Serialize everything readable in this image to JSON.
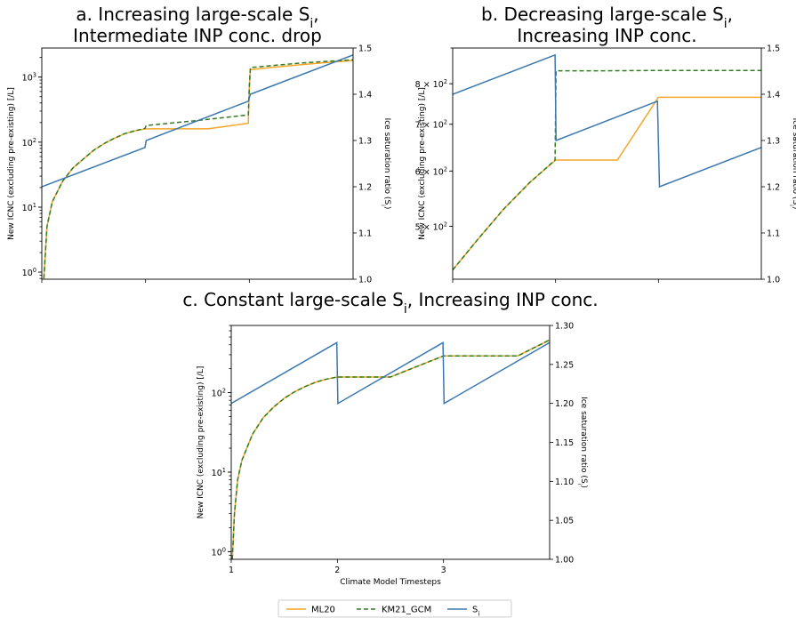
{
  "figure": {
    "legend": [
      {
        "name": "ML20",
        "color": "#f5a52a",
        "dash": false
      },
      {
        "name": "KM21_GCM",
        "color": "#2e7d1f",
        "dash": true
      },
      {
        "name": "S",
        "sub": "i",
        "color": "#3a78b1",
        "dash": false
      }
    ]
  },
  "chart_data": [
    {
      "id": "a",
      "type": "line",
      "title_lines": [
        {
          "text": "a. Increasing large-scale S",
          "sub": "i",
          "tail": ","
        },
        {
          "text": "Intermediate INP conc. drop",
          "sub": "",
          "tail": ""
        }
      ],
      "ylabel_left": "New ICNC (excluding pre-existing) [/L]",
      "ylabel_right": "Ice saturation ratio (S",
      "ylabel_right_sub": "i",
      "ylabel_right_tail": ")",
      "yscale_left": "log",
      "ylim_left": [
        0.78,
        2800
      ],
      "yticks_left": [
        {
          "v": 1,
          "m": "10",
          "e": "0"
        },
        {
          "v": 10,
          "m": "10",
          "e": "1"
        },
        {
          "v": 100,
          "m": "10",
          "e": "2"
        },
        {
          "v": 1000,
          "m": "10",
          "e": "3"
        }
      ],
      "ylim_right": [
        1.0,
        1.5
      ],
      "yticks_right": [
        "1.0",
        "1.1",
        "1.2",
        "1.3",
        "1.4",
        "1.5"
      ],
      "xlim": [
        1,
        4
      ],
      "xticks": [
        1,
        2,
        3
      ],
      "xticklabels": [],
      "series": [
        {
          "name": "ML20",
          "color": "#f5a52a",
          "dash": false,
          "axis": "left",
          "x": [
            1.02,
            1.05,
            1.1,
            1.2,
            1.3,
            1.4,
            1.5,
            1.6,
            1.7,
            1.8,
            1.9,
            2.0,
            2.6,
            2.99,
            3.0,
            3.01,
            3.2,
            3.5,
            3.8,
            4.0
          ],
          "y": [
            0.8,
            5,
            12,
            25,
            40,
            55,
            75,
            95,
            115,
            135,
            150,
            160,
            160,
            195,
            700,
            1300,
            1400,
            1550,
            1700,
            1800
          ]
        },
        {
          "name": "KM21_GCM",
          "color": "#2e7d1f",
          "dash": true,
          "axis": "left",
          "x": [
            1.02,
            1.05,
            1.1,
            1.2,
            1.3,
            1.4,
            1.5,
            1.6,
            1.7,
            1.8,
            1.9,
            1.995,
            2.005,
            2.5,
            2.99,
            3.0,
            3.01,
            3.5,
            4.0
          ],
          "y": [
            0.8,
            5,
            12,
            25,
            40,
            55,
            75,
            95,
            115,
            135,
            150,
            163,
            180,
            215,
            262,
            700,
            1400,
            1650,
            1850
          ]
        },
        {
          "name": "S",
          "color": "#3a78b1",
          "dash": false,
          "axis": "right",
          "x": [
            1,
            1.995,
            2.005,
            2.99,
            3.01,
            4.0
          ],
          "y": [
            1.2,
            1.285,
            1.3,
            1.385,
            1.4,
            1.485
          ]
        }
      ]
    },
    {
      "id": "b",
      "type": "line",
      "title_lines": [
        {
          "text": "b. Decreasing large-scale S",
          "sub": "i",
          "tail": ","
        },
        {
          "text": "Increasing INP conc.",
          "sub": "",
          "tail": ""
        }
      ],
      "ylabel_left": "New ICNC (excluding pre-existing) [/L]",
      "ylabel_right": "Ice saturation ratio (S",
      "ylabel_right_sub": "i",
      "ylabel_right_tail": ")",
      "yscale_left": "log",
      "ylim_left": [
        420,
        900
      ],
      "yticks_left": [
        {
          "v": 500,
          "m": "5 × 10",
          "e": "2"
        },
        {
          "v": 600,
          "m": "6 × 10",
          "e": "2"
        },
        {
          "v": 700,
          "m": "7 × 10",
          "e": "2"
        },
        {
          "v": 800,
          "m": "8 × 10",
          "e": "2"
        }
      ],
      "ylim_right": [
        1.0,
        1.5
      ],
      "yticks_right": [
        "1.0",
        "1.1",
        "1.2",
        "1.3",
        "1.4",
        "1.5"
      ],
      "xlim": [
        1,
        4
      ],
      "xticks": [
        1,
        2,
        3
      ],
      "xticklabels": [],
      "series": [
        {
          "name": "ML20",
          "color": "#f5a52a",
          "dash": false,
          "axis": "left",
          "x": [
            1,
            1.25,
            1.5,
            1.75,
            2.0,
            2.6,
            3.0,
            3.5,
            4.0
          ],
          "y": [
            433,
            480,
            530,
            578,
            622,
            622,
            765,
            765,
            765
          ]
        },
        {
          "name": "KM21_GCM",
          "color": "#2e7d1f",
          "dash": true,
          "axis": "left",
          "x": [
            1,
            1.25,
            1.5,
            1.75,
            1.995,
            2.005,
            2.5,
            3.0,
            4.0
          ],
          "y": [
            433,
            480,
            530,
            578,
            622,
            835,
            835,
            836,
            836
          ]
        },
        {
          "name": "S",
          "color": "#3a78b1",
          "dash": false,
          "axis": "right",
          "x": [
            1,
            1.995,
            2.005,
            2.99,
            3.01,
            4.0
          ],
          "y": [
            1.4,
            1.485,
            1.3,
            1.385,
            1.2,
            1.285
          ]
        }
      ]
    },
    {
      "id": "c",
      "type": "line",
      "title_lines": [
        {
          "text": "c. Constant large-scale S",
          "sub": "i",
          "tail": ", Increasing INP conc."
        }
      ],
      "xlabel": "Climate Model Timesteps",
      "ylabel_left": "New ICNC (excluding pre-existing) [/L]",
      "ylabel_right": "Ice saturation ratio (S",
      "ylabel_right_sub": "i",
      "ylabel_right_tail": ")",
      "yscale_left": "log",
      "ylim_left": [
        0.8,
        700
      ],
      "yticks_left": [
        {
          "v": 1,
          "m": "10",
          "e": "0"
        },
        {
          "v": 10,
          "m": "10",
          "e": "1"
        },
        {
          "v": 100,
          "m": "10",
          "e": "2"
        }
      ],
      "ylim_right": [
        1.0,
        1.3
      ],
      "yticks_right": [
        "1.00",
        "1.05",
        "1.10",
        "1.15",
        "1.20",
        "1.25",
        "1.30"
      ],
      "xlim": [
        1,
        4
      ],
      "xticks": [
        1,
        2,
        3
      ],
      "xticklabels": [
        "1",
        "2",
        "3"
      ],
      "series": [
        {
          "name": "ML20",
          "color": "#f5a52a",
          "dash": false,
          "axis": "left",
          "x": [
            1.01,
            1.03,
            1.06,
            1.1,
            1.2,
            1.3,
            1.4,
            1.5,
            1.6,
            1.7,
            1.8,
            1.9,
            2.0,
            2.5,
            3.0,
            3.7,
            4.0
          ],
          "y": [
            0.8,
            3,
            8,
            14,
            30,
            48,
            66,
            85,
            103,
            120,
            136,
            148,
            157,
            157,
            290,
            290,
            460
          ]
        },
        {
          "name": "KM21_GCM",
          "color": "#2e7d1f",
          "dash": true,
          "axis": "left",
          "x": [
            1.01,
            1.03,
            1.06,
            1.1,
            1.2,
            1.3,
            1.4,
            1.5,
            1.6,
            1.7,
            1.8,
            1.9,
            2.0,
            2.5,
            3.0,
            3.7,
            4.0
          ],
          "y": [
            0.8,
            3,
            8,
            14,
            30,
            48,
            66,
            85,
            103,
            120,
            136,
            148,
            157,
            157,
            290,
            290,
            460
          ]
        },
        {
          "name": "S",
          "color": "#3a78b1",
          "dash": false,
          "axis": "right",
          "x": [
            1,
            1.995,
            2.005,
            2.995,
            3.005,
            4.0
          ],
          "y": [
            1.2,
            1.278,
            1.2,
            1.278,
            1.2,
            1.278
          ]
        }
      ]
    }
  ]
}
